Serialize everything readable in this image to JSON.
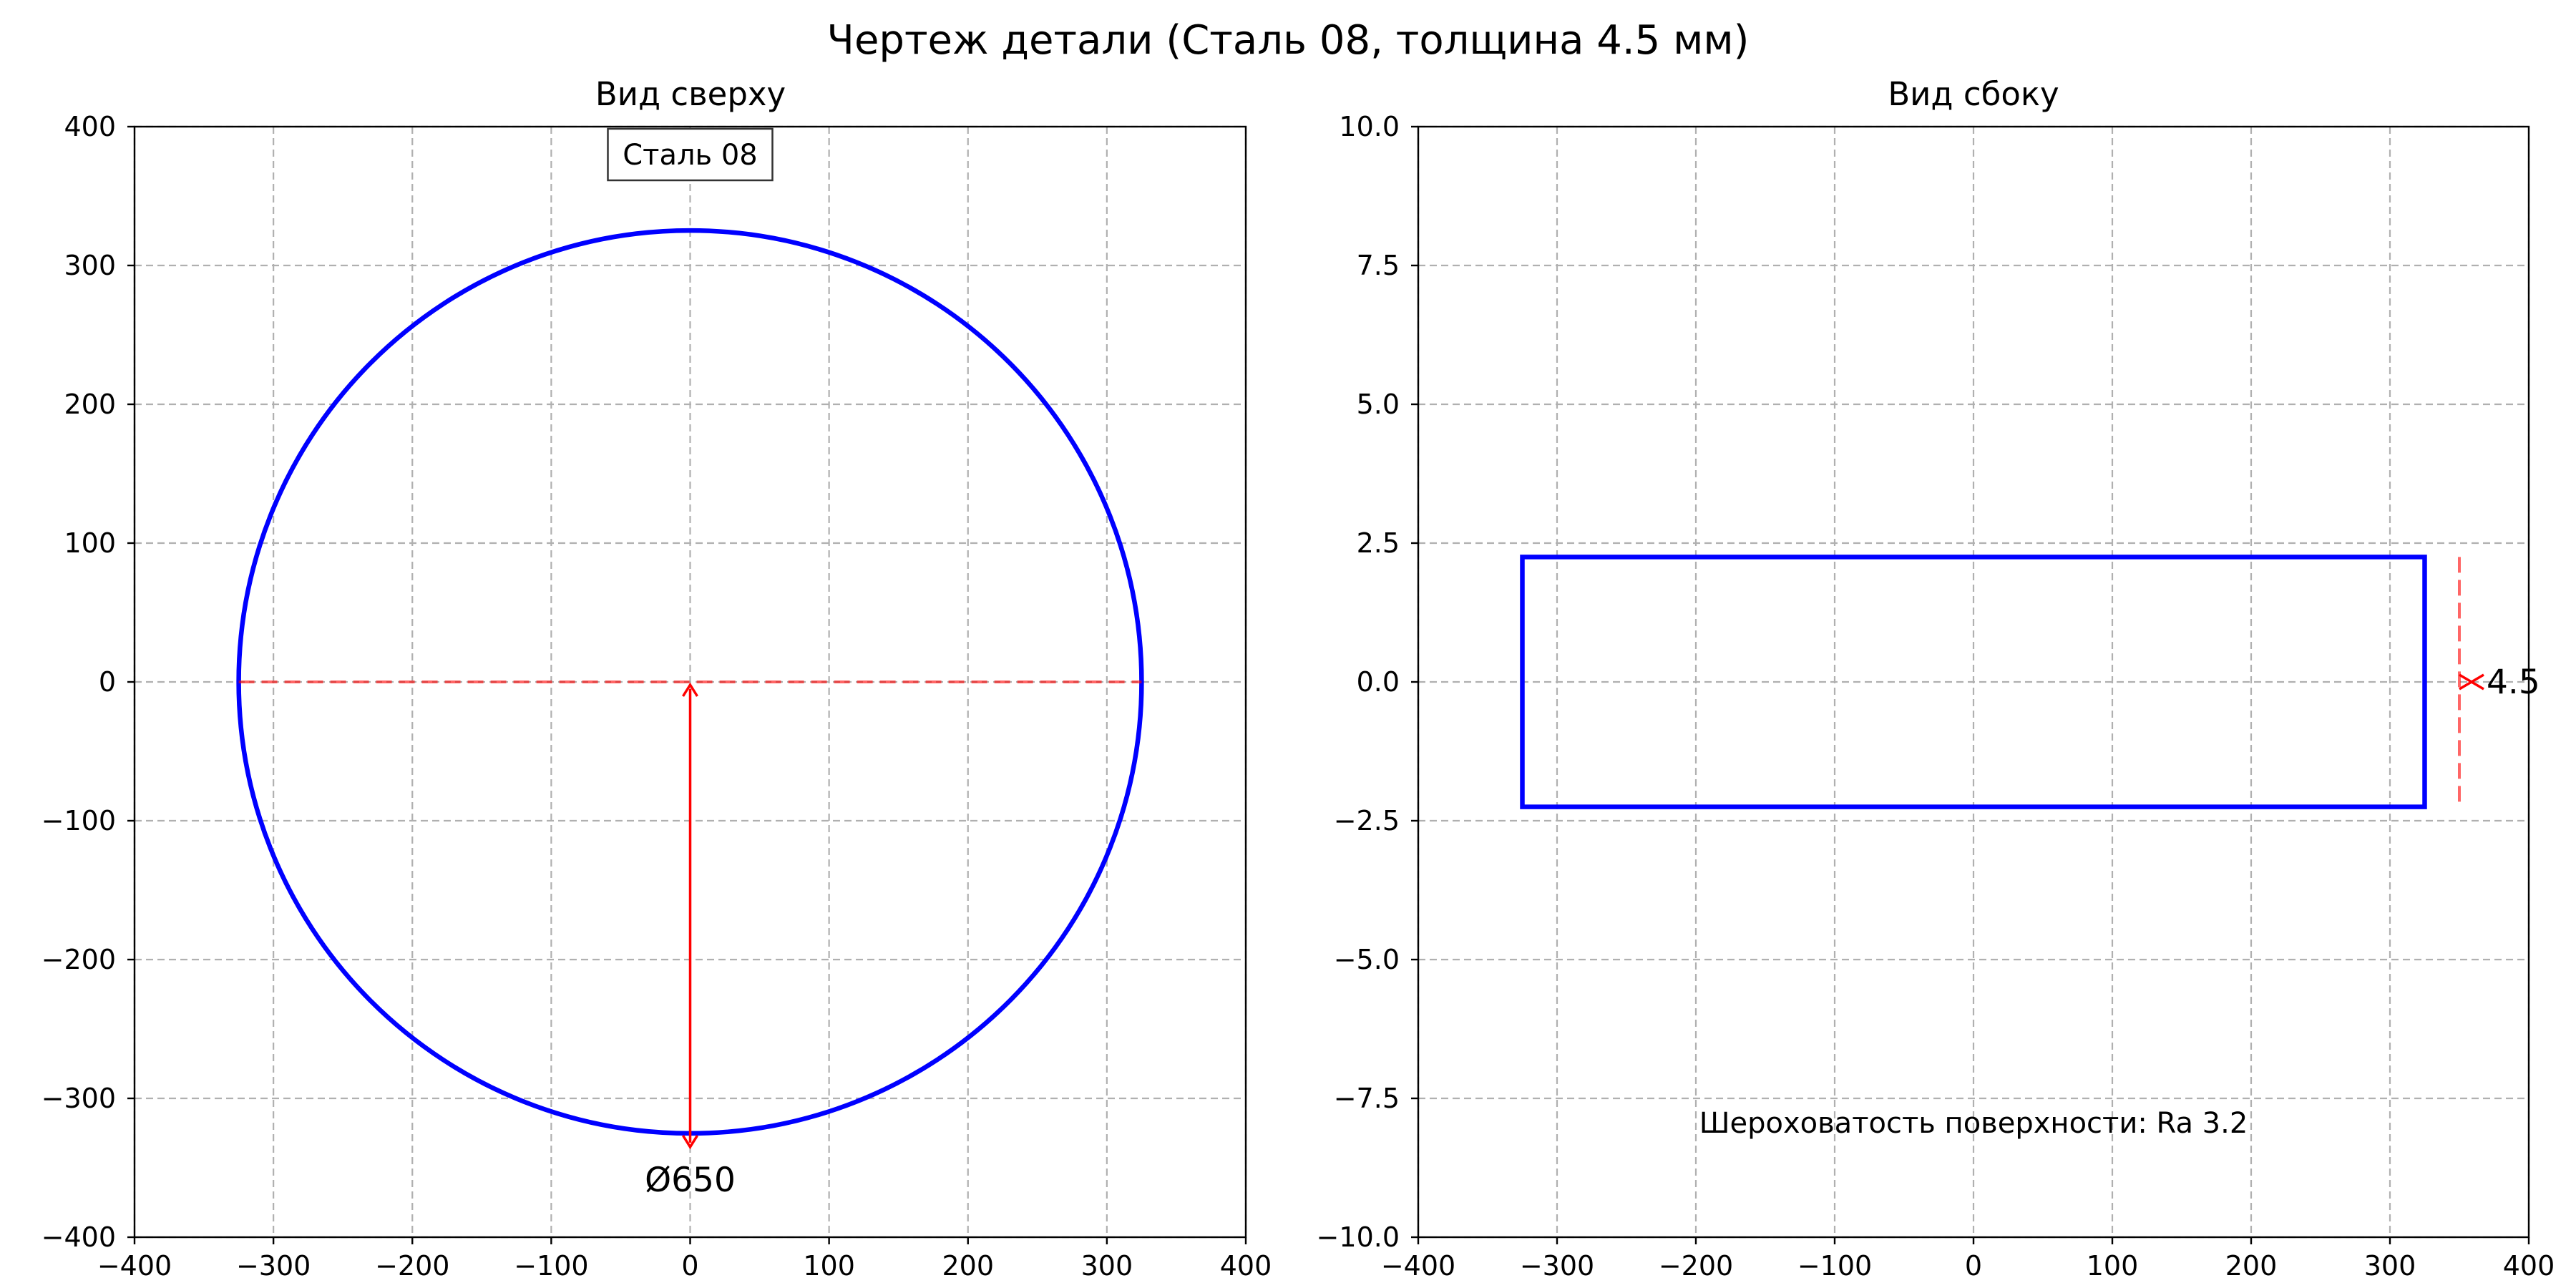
{
  "figure": {
    "title": "Чертеж детали (Сталь 08, толщина 4.5 мм)",
    "colors": {
      "outline": "#0000ff",
      "dimension": "#ff0000",
      "grid": "#b0b0b0"
    }
  },
  "chart_data": [
    {
      "type": "line",
      "title": "Вид сверху",
      "xlim": [
        -400,
        400
      ],
      "ylim": [
        -400,
        400
      ],
      "xticks": [
        -400,
        -300,
        -200,
        -100,
        0,
        100,
        200,
        300,
        400
      ],
      "yticks": [
        -400,
        -300,
        -200,
        -100,
        0,
        100,
        200,
        300,
        400
      ],
      "xtick_labels": [
        "−400",
        "−300",
        "−200",
        "−100",
        "0",
        "100",
        "200",
        "300",
        "400"
      ],
      "ytick_labels": [
        "−400",
        "−300",
        "−200",
        "−100",
        "0",
        "100",
        "200",
        "300",
        "400"
      ],
      "grid": true,
      "shapes": {
        "circle": {
          "cx": 0,
          "cy": 0,
          "diameter": 650
        },
        "centerline": {
          "x": [
            -325,
            325
          ],
          "y": [
            0,
            0
          ]
        },
        "dimension_arrow": {
          "x": [
            0,
            0
          ],
          "y": [
            0,
            -335
          ]
        }
      },
      "annotations": {
        "material_box": "Сталь 08",
        "diameter_label": "Ø650"
      }
    },
    {
      "type": "line",
      "title": "Вид сбоку",
      "xlim": [
        -400,
        400
      ],
      "ylim": [
        -10,
        10
      ],
      "xticks": [
        -400,
        -300,
        -200,
        -100,
        0,
        100,
        200,
        300,
        400
      ],
      "yticks": [
        -10,
        -7.5,
        -5,
        -2.5,
        0,
        2.5,
        5,
        7.5,
        10
      ],
      "xtick_labels": [
        "−400",
        "−300",
        "−200",
        "−100",
        "0",
        "100",
        "200",
        "300",
        "400"
      ],
      "ytick_labels": [
        "−10.0",
        "−7.5",
        "−5.0",
        "−2.5",
        "0.0",
        "2.5",
        "5.0",
        "7.5",
        "10.0"
      ],
      "grid": true,
      "shapes": {
        "rectangle": {
          "x": [
            -325,
            325
          ],
          "y": [
            -2.25,
            2.25
          ]
        },
        "thickness_dimension": {
          "x": 350,
          "y": [
            -2.25,
            2.25
          ]
        }
      },
      "annotations": {
        "thickness_label": "4.5",
        "roughness_note": "Шероховатость поверхности: Ra 3.2"
      }
    }
  ]
}
